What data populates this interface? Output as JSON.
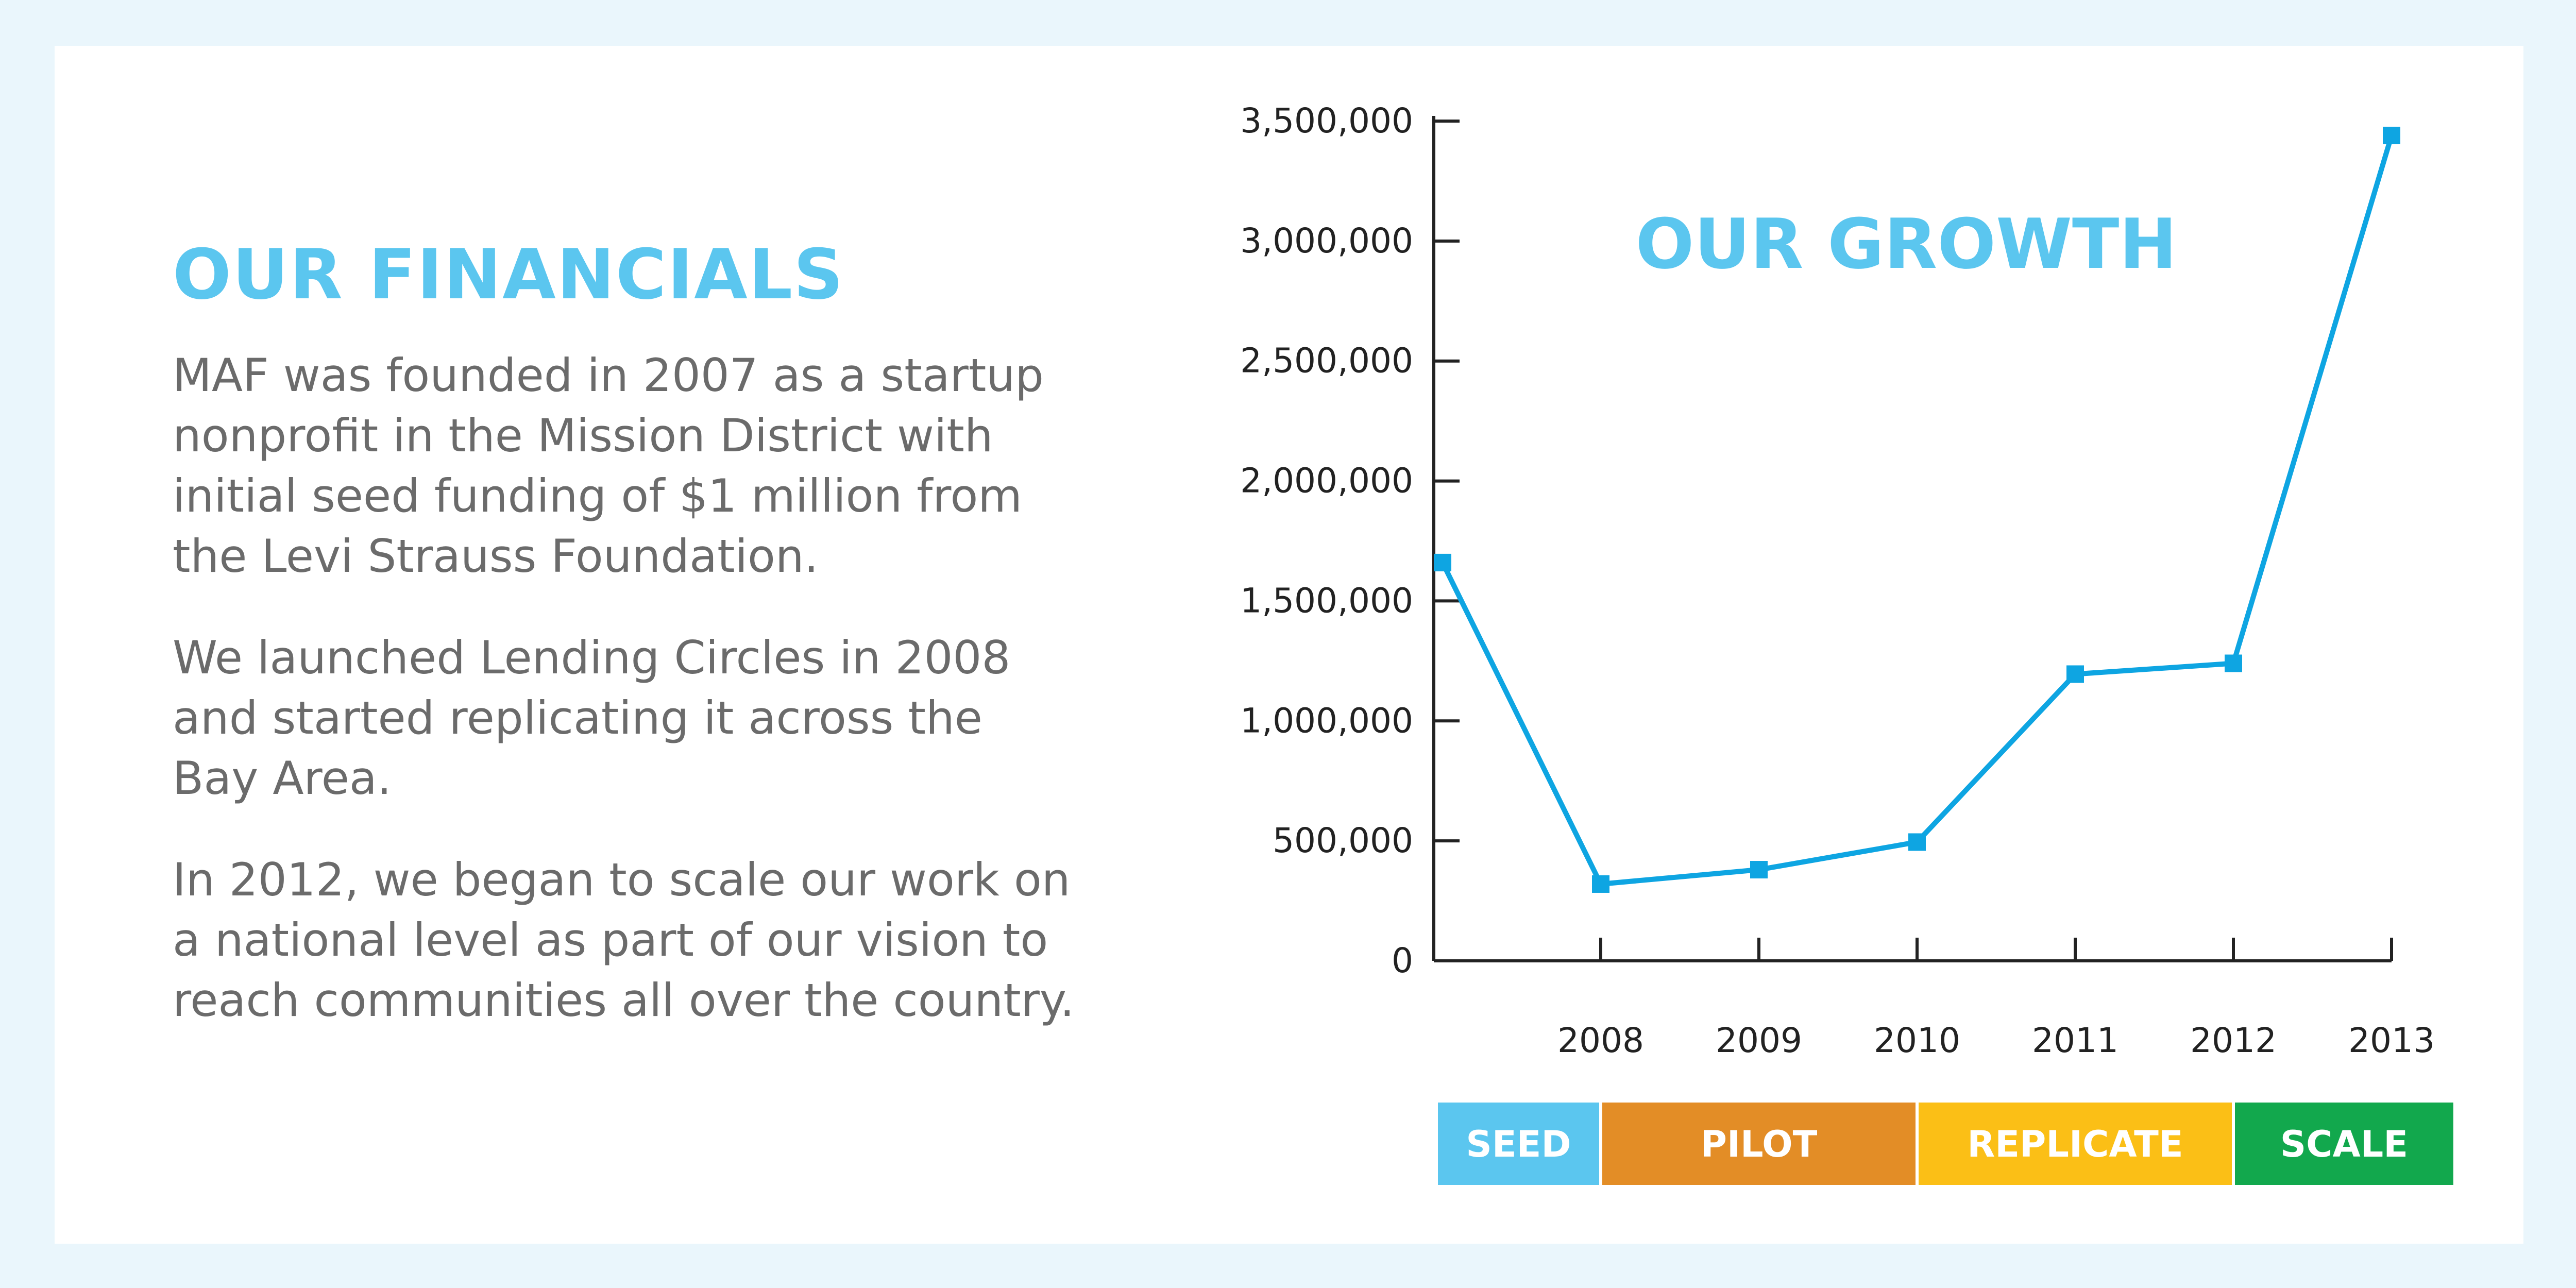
{
  "left_panel": {
    "title": "OUR FINANCIALS",
    "paragraphs": [
      "MAF was founded in 2007 as a startup\nnonprofit in the Mission District with\ninitial seed funding of $1 million from\nthe Levi Strauss Foundation.",
      "We launched Lending Circles in 2008\nand started replicating it across the\nBay Area.",
      "In 2012, we began to scale our work on\na national level as part of our vision to\nreach communities all over the country."
    ]
  },
  "colors": {
    "line": "#0ea5e2",
    "title": "#5bc6ef",
    "axis": "#222222",
    "seed": "#5bc6ef",
    "pilot": "#e38d26",
    "replicate": "#fbbf16",
    "scale": "#12a84d"
  },
  "chart_data": {
    "type": "line",
    "title": "OUR GROWTH",
    "xlabel": "",
    "ylabel": "",
    "x": [
      2007,
      2008,
      2009,
      2010,
      2011,
      2012,
      2013
    ],
    "x_tick_labels": [
      "2008",
      "2009",
      "2010",
      "2011",
      "2012",
      "2013"
    ],
    "values": [
      1660000,
      320000,
      380000,
      495000,
      1195000,
      1240000,
      3440000
    ],
    "ylim": [
      0,
      3500000
    ],
    "y_ticks": [
      0,
      500000,
      1000000,
      1500000,
      2000000,
      2500000,
      3000000,
      3500000
    ],
    "y_tick_labels": [
      "0",
      "500,000",
      "1,000,000",
      "1,500,000",
      "2,000,000",
      "2,500,000",
      "3,000,000",
      "3,500,000"
    ],
    "grid": false,
    "legend": "none",
    "phases": [
      {
        "label": "SEED",
        "from": 2007,
        "to": 2008,
        "color": "#5bc6ef"
      },
      {
        "label": "PILOT",
        "from": 2008,
        "to": 2010,
        "color": "#e38d26"
      },
      {
        "label": "REPLICATE",
        "from": 2010,
        "to": 2012,
        "color": "#fbbf16"
      },
      {
        "label": "SCALE",
        "from": 2012,
        "to": 2013.4,
        "color": "#12a84d"
      }
    ]
  }
}
